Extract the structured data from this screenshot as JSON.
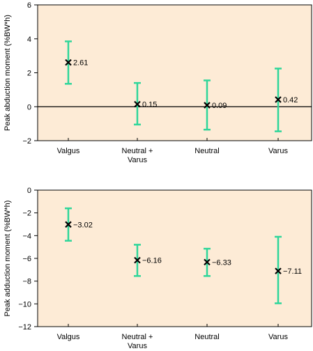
{
  "colors": {
    "plot_bg": "#fdebd6",
    "error_bar": "#2fd69a",
    "marker": "#000000",
    "frame": "#000000"
  },
  "chart_data": [
    {
      "type": "scatter",
      "ylabel": "Peak abduction moment (%BW*h)",
      "xlabel": "",
      "categories": [
        "Valgus",
        "Neutral +\nVarus",
        "Neutral",
        "Varus"
      ],
      "ylim": [
        -2,
        6
      ],
      "yticks": [
        -2,
        0,
        2,
        4,
        6
      ],
      "zero_line": true,
      "points": [
        {
          "category": "Valgus",
          "value": 2.61,
          "label": "2.61",
          "err_low": 1.35,
          "err_high": 3.85
        },
        {
          "category": "Neutral +\nVarus",
          "value": 0.15,
          "label": "0.15",
          "err_low": -1.05,
          "err_high": 1.4
        },
        {
          "category": "Neutral",
          "value": 0.09,
          "label": "0.09",
          "err_low": -1.35,
          "err_high": 1.55
        },
        {
          "category": "Varus",
          "value": 0.42,
          "label": "0.42",
          "err_low": -1.45,
          "err_high": 2.25
        }
      ]
    },
    {
      "type": "scatter",
      "ylabel": "Peak adduction moment (%BW*h)",
      "xlabel": "",
      "categories": [
        "Valgus",
        "Neutral +\nVarus",
        "Neutral",
        "Varus"
      ],
      "ylim": [
        -12,
        0
      ],
      "yticks": [
        -12,
        -10,
        -8,
        -6,
        -4,
        -2,
        0
      ],
      "zero_line": false,
      "points": [
        {
          "category": "Valgus",
          "value": -3.02,
          "label": "−3.02",
          "err_low": -4.45,
          "err_high": -1.6
        },
        {
          "category": "Neutral +\nVarus",
          "value": -6.16,
          "label": "−6.16",
          "err_low": -7.55,
          "err_high": -4.8
        },
        {
          "category": "Neutral",
          "value": -6.33,
          "label": "−6.33",
          "err_low": -7.55,
          "err_high": -5.15
        },
        {
          "category": "Varus",
          "value": -7.11,
          "label": "−7.11",
          "err_low": -9.95,
          "err_high": -4.1
        }
      ]
    }
  ]
}
